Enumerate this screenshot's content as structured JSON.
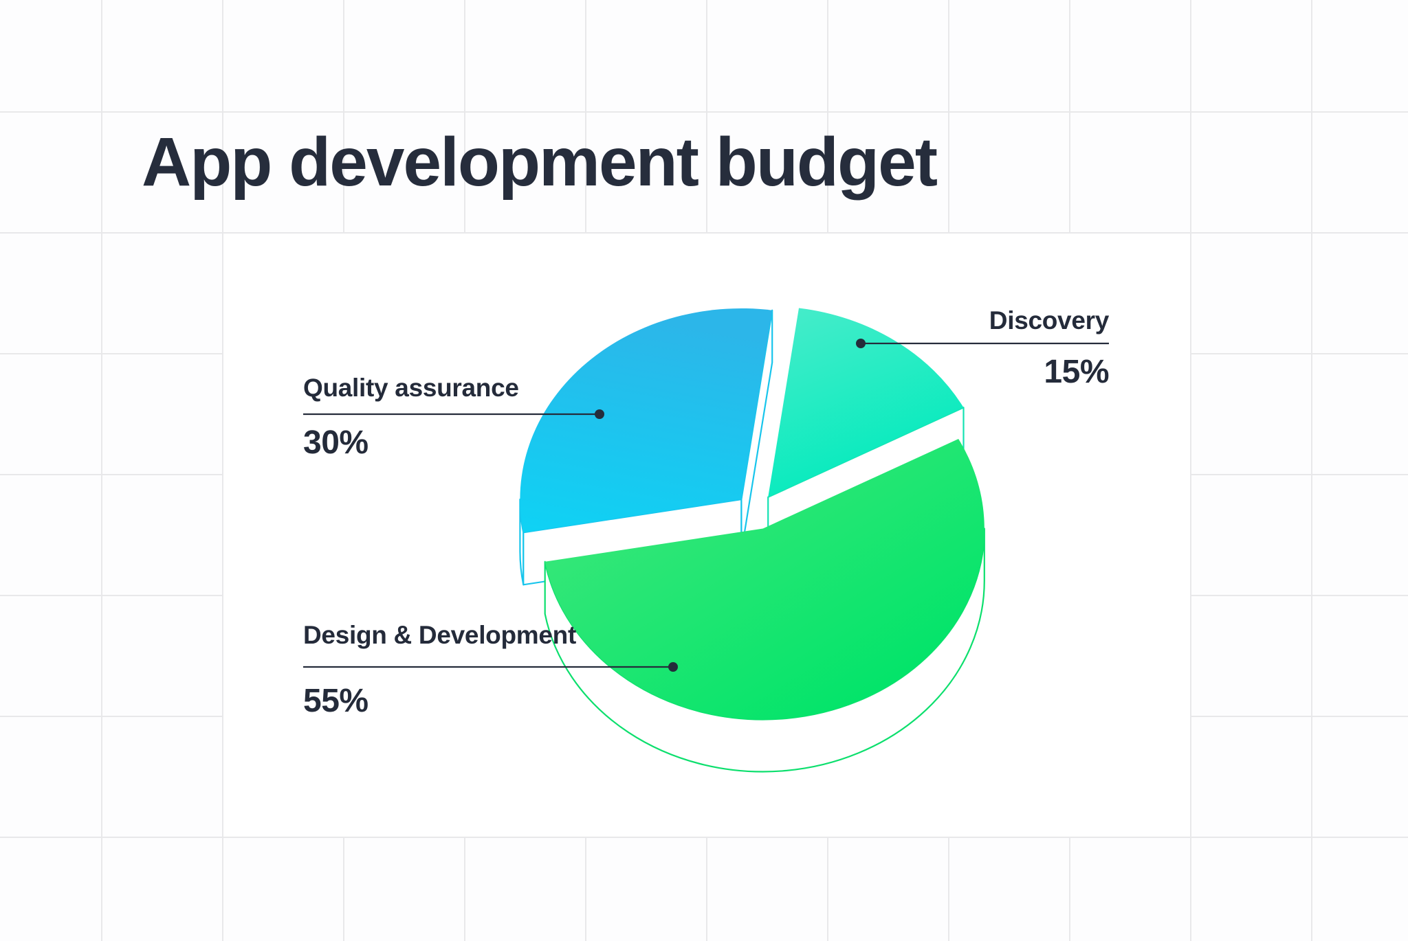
{
  "title": "App development budget",
  "colors": {
    "text": "#242b3a",
    "title_text": "#262d3c",
    "leader_line": "#252c3b"
  },
  "chart_data": {
    "type": "pie",
    "style": "3d-exploded",
    "title": "App development budget",
    "legend_position": "callout-labels",
    "slices": [
      {
        "label": "Discovery",
        "value": 15,
        "display": "15%",
        "color_light": "#46ecca",
        "color_main": "#00ebbc",
        "color_stroke": "#14e2b2"
      },
      {
        "label": "Design & Development",
        "value": 55,
        "display": "55%",
        "color_light": "#45e87d",
        "color_main": "#00e469",
        "color_stroke": "#0cdf6d"
      },
      {
        "label": "Quality assurance",
        "value": 30,
        "display": "30%",
        "color_light": "#2cb6e9",
        "color_main": "#0fd2f4",
        "color_stroke": "#17c5ec"
      }
    ]
  }
}
